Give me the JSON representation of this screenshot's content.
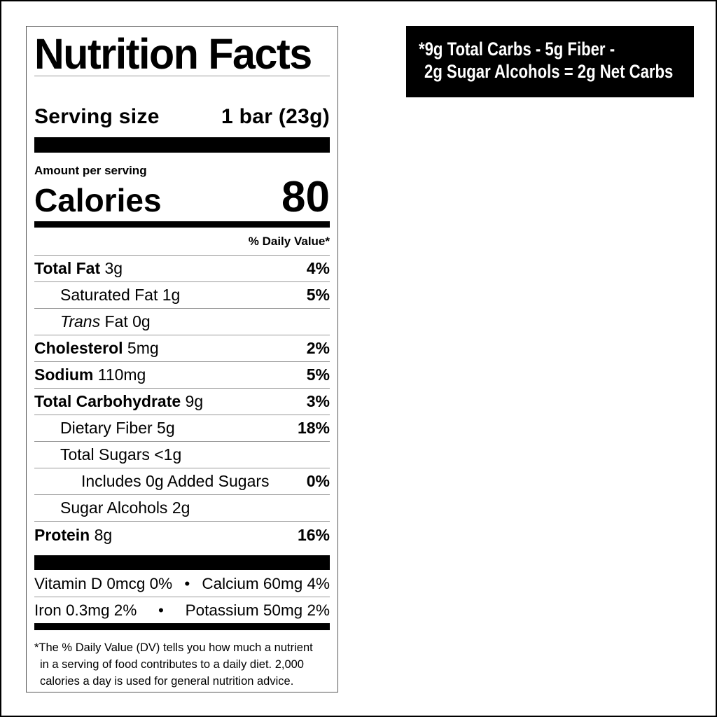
{
  "label": {
    "title": "Nutrition Facts",
    "serving_size_label": "Serving size",
    "serving_size_value": "1 bar (23g)",
    "amount_per_serving": "Amount per serving",
    "calories_label": "Calories",
    "calories_value": "80",
    "dv_header": "% Daily Value*",
    "nutrients": [
      {
        "name": "Total Fat",
        "amount": "3g",
        "dv": "4%"
      },
      {
        "name": "Saturated Fat 1g",
        "dv": "5%"
      },
      {
        "name_italic": "Trans",
        "name": "Fat 0g"
      },
      {
        "name": "Cholesterol",
        "amount": "5mg",
        "dv": "2%"
      },
      {
        "name": "Sodium",
        "amount": "110mg",
        "dv": "5%"
      },
      {
        "name": "Total Carbohydrate",
        "amount": "9g",
        "dv": "3%"
      },
      {
        "name": "Dietary Fiber 5g",
        "dv": "18%"
      },
      {
        "name": "Total Sugars <1g"
      },
      {
        "name": "Includes 0g Added Sugars",
        "dv": "0%"
      },
      {
        "name": "Sugar Alcohols 2g"
      },
      {
        "name": "Protein",
        "amount": "8g",
        "dv": "16%"
      }
    ],
    "vitamins": [
      {
        "left": "Vitamin D 0mcg 0%",
        "sep": "•",
        "right": "Calcium 60mg 4%"
      },
      {
        "left": "Iron 0.3mg 2%",
        "sep": "•",
        "right": "Potassium 50mg 2%"
      }
    ],
    "footnote": [
      "*The % Daily Value (DV) tells you how much a nutrient",
      "in a serving of food contributes to a daily diet. 2,000",
      "calories a day is used for general nutrition advice."
    ]
  },
  "net_carbs": {
    "line1": "*9g Total Carbs - 5g Fiber -",
    "line2": "2g Sugar Alcohols = 2g Net Carbs"
  }
}
